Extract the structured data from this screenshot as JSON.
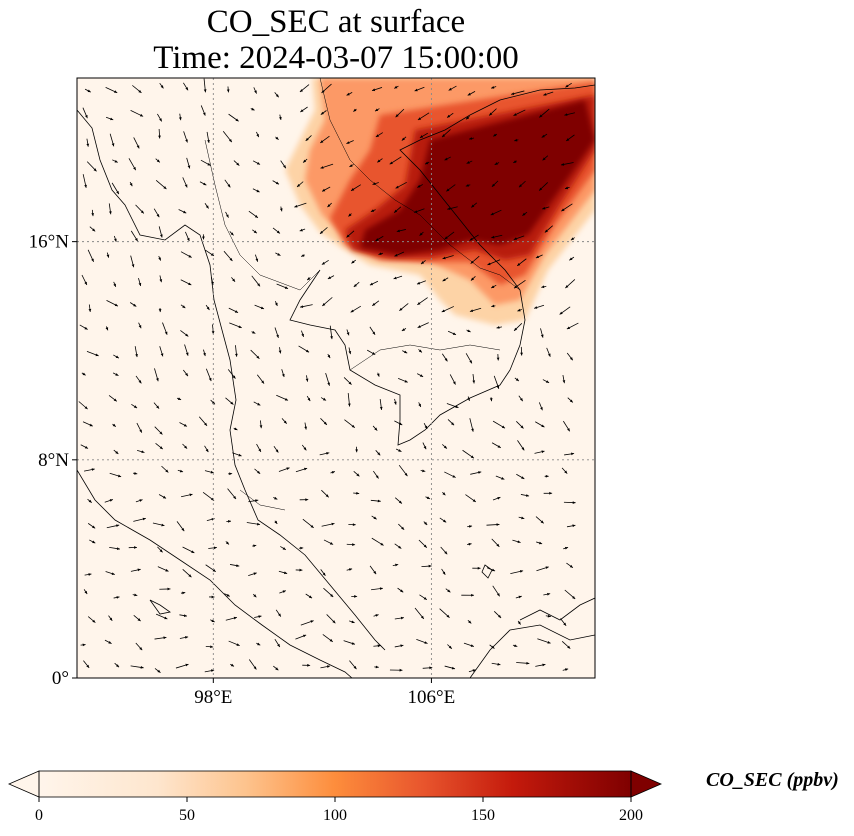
{
  "title_line1": "CO_SEC at surface",
  "title_line2": "Time: 2024-03-07 15:00:00",
  "map": {
    "extent": {
      "lon_min": 93,
      "lon_max": 112,
      "lat_min": 0,
      "lat_max": 22
    },
    "lat_ticks": [
      {
        "value": 16,
        "label": "16°N"
      },
      {
        "value": 8,
        "label": "8°N"
      },
      {
        "value": 0,
        "label": "0°"
      }
    ],
    "lon_ticks": [
      {
        "value": 98,
        "label": "98°E"
      },
      {
        "value": 106,
        "label": "106°E"
      }
    ],
    "gridlines": true,
    "field_colors": [
      "#fff5eb",
      "#fdd3a6",
      "#fc9966",
      "#e8552d",
      "#b81a07",
      "#7f0000"
    ]
  },
  "colorbar": {
    "label": "CO_SEC (ppbv)",
    "min": 0,
    "max": 200,
    "ticks": [
      {
        "value": 0,
        "label": "0"
      },
      {
        "value": 50,
        "label": "50"
      },
      {
        "value": 100,
        "label": "100"
      },
      {
        "value": 150,
        "label": "150"
      },
      {
        "value": 200,
        "label": "200"
      }
    ]
  }
}
